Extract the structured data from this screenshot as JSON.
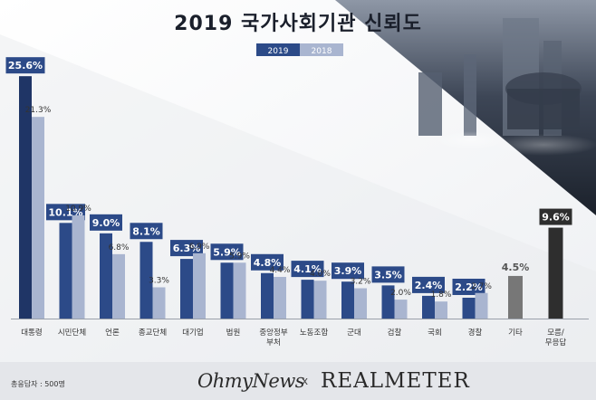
{
  "title": "2019 국가사회기관 신뢰도",
  "footer": {
    "note": "총응답자 : 500명",
    "brand_left": "OhmyNews",
    "separator": "x",
    "brand_right": "REALMETER"
  },
  "colors": {
    "y2019": "#2c4a88",
    "y2019_first": "#1f3566",
    "y2018": "#a9b5d0",
    "other": "#777777",
    "unknown": "#2e2e2e",
    "label_box_2019": "#2c4a88",
    "label_box_other": "#888888",
    "label_box_unknown": "#2e2e2e"
  },
  "chart_data": {
    "type": "bar",
    "title": "2019 국가사회기관 신뢰도",
    "legend": {
      "position": "top-right",
      "entries": [
        "2019",
        "2018"
      ]
    },
    "categories": [
      [
        "대통령"
      ],
      [
        "시민단체"
      ],
      [
        "언론"
      ],
      [
        "종교단체"
      ],
      [
        "대기업"
      ],
      [
        "법원"
      ],
      [
        "중앙정부",
        "부처"
      ],
      [
        "노동조합"
      ],
      [
        "군대"
      ],
      [
        "검찰"
      ],
      [
        "국회"
      ],
      [
        "경찰"
      ],
      [
        "기타"
      ],
      [
        "모름/",
        "무응답"
      ]
    ],
    "series": [
      {
        "name": "2019",
        "values": [
          25.6,
          10.1,
          9.0,
          8.1,
          6.3,
          5.9,
          4.8,
          4.1,
          3.9,
          3.5,
          2.4,
          2.2,
          null,
          null
        ],
        "labels": [
          "25.6%",
          "10.1%",
          "9.0%",
          "8.1%",
          "6.3%",
          "5.9%",
          "4.8%",
          "4.1%",
          "3.9%",
          "3.5%",
          "2.4%",
          "2.2%",
          "",
          ""
        ]
      },
      {
        "name": "2018",
        "values": [
          21.3,
          10.9,
          6.8,
          3.3,
          6.9,
          5.9,
          4.4,
          4.0,
          3.2,
          2.0,
          1.8,
          2.7,
          null,
          null
        ],
        "labels": [
          "21.3%",
          "10.9%",
          "6.8%",
          "3.3%",
          "6.9%",
          "5.9%",
          "4.4%",
          "4.0%",
          "3.2%",
          "2.0%",
          "1.8%",
          "2.7%",
          "",
          ""
        ]
      }
    ],
    "single": [
      {
        "index": 12,
        "value": 4.5,
        "label": "4.5%",
        "kind": "other"
      },
      {
        "index": 13,
        "value": 9.6,
        "label": "9.6%",
        "kind": "unknown"
      }
    ],
    "ylim": [
      0,
      26
    ],
    "xlabel": "",
    "ylabel": "",
    "grid": false,
    "unit": "%"
  }
}
